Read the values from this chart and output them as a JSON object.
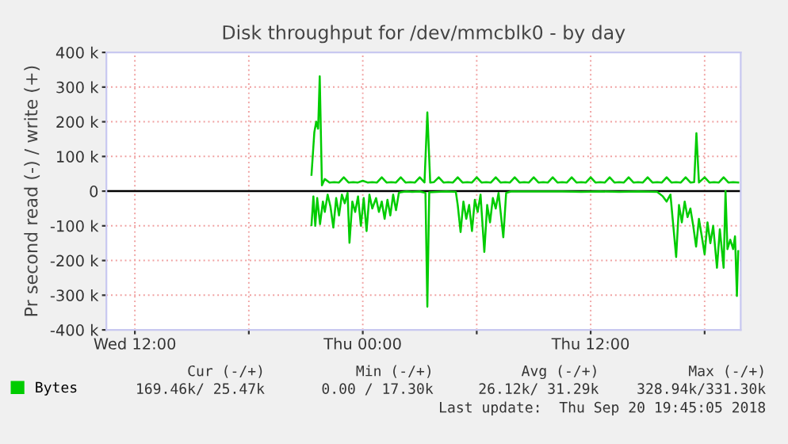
{
  "chart_data": {
    "type": "line",
    "title": "Disk throughput for /dev/mmcblk0 - by day",
    "ylabel": "Pr second read (-) / write (+)",
    "xlim": [
      "2018-09-19T10:30",
      "2018-09-20T19:54"
    ],
    "xticks": [
      {
        "value": "2018-09-19T12:00",
        "label": "Wed 12:00"
      },
      {
        "value": "2018-09-19T18:00",
        "label": null
      },
      {
        "value": "2018-09-20T00:00",
        "label": "Thu 00:00"
      },
      {
        "value": "2018-09-20T06:00",
        "label": null
      },
      {
        "value": "2018-09-20T12:00",
        "label": "Thu 12:00"
      },
      {
        "value": "2018-09-20T18:00",
        "label": null
      }
    ],
    "ylim": [
      -400000,
      400000
    ],
    "yticks": [
      {
        "value": -400000,
        "label": "-400 k"
      },
      {
        "value": -300000,
        "label": "-300 k"
      },
      {
        "value": -200000,
        "label": "-200 k"
      },
      {
        "value": -100000,
        "label": "-100 k"
      },
      0,
      {
        "value": 100000,
        "label": "100 k"
      },
      {
        "value": 200000,
        "label": "200 k"
      },
      {
        "value": 300000,
        "label": "300 k"
      },
      {
        "value": 400000,
        "label": "400 k"
      }
    ],
    "grid": true,
    "legend": "bottom left",
    "ref_lines": [
      {
        "axis": "y",
        "value": 0,
        "color": "#000000"
      }
    ],
    "series": [
      {
        "name": "Bytes",
        "color": "#00cc00",
        "x": [
          "2018-09-19T21:18",
          "2018-09-19T21:27",
          "2018-09-19T21:33",
          "2018-09-19T21:39",
          "2018-09-19T21:44",
          "2018-09-19T21:51",
          "2018-09-19T22:00",
          "2018-09-19T22:15",
          "2018-09-19T22:30",
          "2018-09-19T22:45",
          "2018-09-19T23:00",
          "2018-09-19T23:15",
          "2018-09-19T23:30",
          "2018-09-19T23:45",
          "2018-09-20T00:00",
          "2018-09-20T00:15",
          "2018-09-20T00:30",
          "2018-09-20T00:45",
          "2018-09-20T01:00",
          "2018-09-20T01:15",
          "2018-09-20T01:30",
          "2018-09-20T01:45",
          "2018-09-20T02:00",
          "2018-09-20T02:15",
          "2018-09-20T02:30",
          "2018-09-20T02:45",
          "2018-09-20T03:00",
          "2018-09-20T03:15",
          "2018-09-20T03:24",
          "2018-09-20T03:33",
          "2018-09-20T03:45",
          "2018-09-20T04:00",
          "2018-09-20T04:15",
          "2018-09-20T04:30",
          "2018-09-20T04:45",
          "2018-09-20T05:00",
          "2018-09-20T05:15",
          "2018-09-20T05:30",
          "2018-09-20T05:45",
          "2018-09-20T06:00",
          "2018-09-20T06:15",
          "2018-09-20T06:30",
          "2018-09-20T06:45",
          "2018-09-20T07:00",
          "2018-09-20T07:15",
          "2018-09-20T07:30",
          "2018-09-20T07:45",
          "2018-09-20T08:00",
          "2018-09-20T08:15",
          "2018-09-20T08:30",
          "2018-09-20T08:45",
          "2018-09-20T09:00",
          "2018-09-20T09:15",
          "2018-09-20T09:30",
          "2018-09-20T09:45",
          "2018-09-20T10:00",
          "2018-09-20T10:15",
          "2018-09-20T10:30",
          "2018-09-20T10:45",
          "2018-09-20T11:00",
          "2018-09-20T11:15",
          "2018-09-20T11:30",
          "2018-09-20T11:45",
          "2018-09-20T12:00",
          "2018-09-20T12:15",
          "2018-09-20T12:30",
          "2018-09-20T12:45",
          "2018-09-20T13:00",
          "2018-09-20T13:15",
          "2018-09-20T13:30",
          "2018-09-20T13:45",
          "2018-09-20T14:00",
          "2018-09-20T14:15",
          "2018-09-20T14:30",
          "2018-09-20T14:45",
          "2018-09-20T15:00",
          "2018-09-20T15:15",
          "2018-09-20T15:30",
          "2018-09-20T15:45",
          "2018-09-20T16:00",
          "2018-09-20T16:15",
          "2018-09-20T16:30",
          "2018-09-20T16:45",
          "2018-09-20T17:00",
          "2018-09-20T17:15",
          "2018-09-20T17:27",
          "2018-09-20T17:34",
          "2018-09-20T17:42",
          "2018-09-20T18:00",
          "2018-09-20T18:15",
          "2018-09-20T18:30",
          "2018-09-20T18:45",
          "2018-09-20T19:00",
          "2018-09-20T19:15",
          "2018-09-20T19:30",
          "2018-09-20T19:46"
        ],
        "values": [
          47000,
          170000,
          200000,
          180000,
          331000,
          17000,
          35000,
          25000,
          26000,
          25000,
          40000,
          25000,
          26000,
          25000,
          30000,
          25000,
          26000,
          25000,
          40000,
          25000,
          26000,
          25000,
          40000,
          25000,
          26000,
          25000,
          40000,
          25000,
          227000,
          25000,
          26000,
          40000,
          25000,
          26000,
          25000,
          40000,
          25000,
          26000,
          25000,
          40000,
          25000,
          26000,
          25000,
          40000,
          25000,
          26000,
          25000,
          40000,
          25000,
          26000,
          25000,
          40000,
          25000,
          26000,
          25000,
          40000,
          25000,
          26000,
          25000,
          40000,
          25000,
          26000,
          25000,
          40000,
          25000,
          26000,
          25000,
          40000,
          25000,
          26000,
          25000,
          40000,
          25000,
          26000,
          25000,
          40000,
          25000,
          26000,
          25000,
          40000,
          25000,
          26000,
          25000,
          40000,
          25000,
          26000,
          167000,
          25000,
          40000,
          25000,
          26000,
          25000,
          40000,
          25000,
          26000,
          25000
        ]
      },
      {
        "color": "#00cc00",
        "x": [
          "2018-09-19T21:18",
          "2018-09-19T21:24",
          "2018-09-19T21:30",
          "2018-09-19T21:36",
          "2018-09-19T21:45",
          "2018-09-19T21:54",
          "2018-09-19T22:00",
          "2018-09-19T22:09",
          "2018-09-19T22:18",
          "2018-09-19T22:27",
          "2018-09-19T22:36",
          "2018-09-19T22:45",
          "2018-09-19T22:54",
          "2018-09-19T23:03",
          "2018-09-19T23:12",
          "2018-09-19T23:18",
          "2018-09-19T23:27",
          "2018-09-19T23:36",
          "2018-09-19T23:45",
          "2018-09-19T23:54",
          "2018-09-20T00:03",
          "2018-09-20T00:12",
          "2018-09-20T00:21",
          "2018-09-20T00:30",
          "2018-09-20T00:42",
          "2018-09-20T00:51",
          "2018-09-20T01:00",
          "2018-09-20T01:09",
          "2018-09-20T01:18",
          "2018-09-20T01:27",
          "2018-09-20T01:36",
          "2018-09-20T01:45",
          "2018-09-20T01:54",
          "2018-09-20T02:00",
          "2018-09-20T02:18",
          "2018-09-20T02:36",
          "2018-09-20T03:00",
          "2018-09-20T03:18",
          "2018-09-20T03:24",
          "2018-09-20T03:30",
          "2018-09-20T03:54",
          "2018-09-20T04:24",
          "2018-09-20T04:54",
          "2018-09-20T05:00",
          "2018-09-20T05:09",
          "2018-09-20T05:18",
          "2018-09-20T05:27",
          "2018-09-20T05:36",
          "2018-09-20T05:45",
          "2018-09-20T05:54",
          "2018-09-20T06:03",
          "2018-09-20T06:12",
          "2018-09-20T06:24",
          "2018-09-20T06:33",
          "2018-09-20T06:42",
          "2018-09-20T06:51",
          "2018-09-20T07:00",
          "2018-09-20T07:09",
          "2018-09-20T07:24",
          "2018-09-20T07:33",
          "2018-09-20T07:48",
          "2018-09-20T08:30",
          "2018-09-20T09:30",
          "2018-09-20T10:30",
          "2018-09-20T11:30",
          "2018-09-20T12:30",
          "2018-09-20T13:30",
          "2018-09-20T14:30",
          "2018-09-20T15:30",
          "2018-09-20T15:48",
          "2018-09-20T16:00",
          "2018-09-20T16:12",
          "2018-09-20T16:30",
          "2018-09-20T16:39",
          "2018-09-20T16:48",
          "2018-09-20T16:57",
          "2018-09-20T17:06",
          "2018-09-20T17:15",
          "2018-09-20T17:24",
          "2018-09-20T17:33",
          "2018-09-20T17:42",
          "2018-09-20T17:51",
          "2018-09-20T18:00",
          "2018-09-20T18:09",
          "2018-09-20T18:18",
          "2018-09-20T18:27",
          "2018-09-20T18:39",
          "2018-09-20T18:48",
          "2018-09-20T19:00",
          "2018-09-20T19:06",
          "2018-09-20T19:12",
          "2018-09-20T19:21",
          "2018-09-20T19:30",
          "2018-09-20T19:36",
          "2018-09-20T19:42",
          "2018-09-20T19:46"
        ],
        "values": [
          -98000,
          -15000,
          -100000,
          -20000,
          -95000,
          -30000,
          -60000,
          -10000,
          -45000,
          -105000,
          -20000,
          -70000,
          -10000,
          -35000,
          -5000,
          -149000,
          -30000,
          -60000,
          -15000,
          -100000,
          -20000,
          -115000,
          -10000,
          -50000,
          -20000,
          -60000,
          -30000,
          -80000,
          -25000,
          -70000,
          -10000,
          -55000,
          -5000,
          -3000,
          -1000,
          -2000,
          -1000,
          -5000,
          -333000,
          -3000,
          -2000,
          -1000,
          -2000,
          -40000,
          -118000,
          -30000,
          -80000,
          -40000,
          -115000,
          -25000,
          -60000,
          -10000,
          -175000,
          -40000,
          -90000,
          -20000,
          -50000,
          -5000,
          -133000,
          -5000,
          -1000,
          -1000,
          -1000,
          -1000,
          -2000,
          -1000,
          -2000,
          -1000,
          -2000,
          -15000,
          -30000,
          -10000,
          -190000,
          -40000,
          -90000,
          -30000,
          -75000,
          -50000,
          -100000,
          -160000,
          -80000,
          -130000,
          -182000,
          -90000,
          -150000,
          -100000,
          -221000,
          -110000,
          -221000,
          0,
          -167000,
          -140000,
          -167000,
          -130000,
          -302000,
          -173000
        ]
      }
    ],
    "annotations": [
      "Cur (-/+)",
      "Min (-/+)",
      "Avg (-/+)",
      "Max (-/+)",
      "169.46k/ 25.47k",
      "0.00 / 17.30k",
      "26.12k/ 31.29k",
      "328.94k/331.30k",
      "Last update:  Thu Sep 20 19:45:05 2018"
    ]
  }
}
